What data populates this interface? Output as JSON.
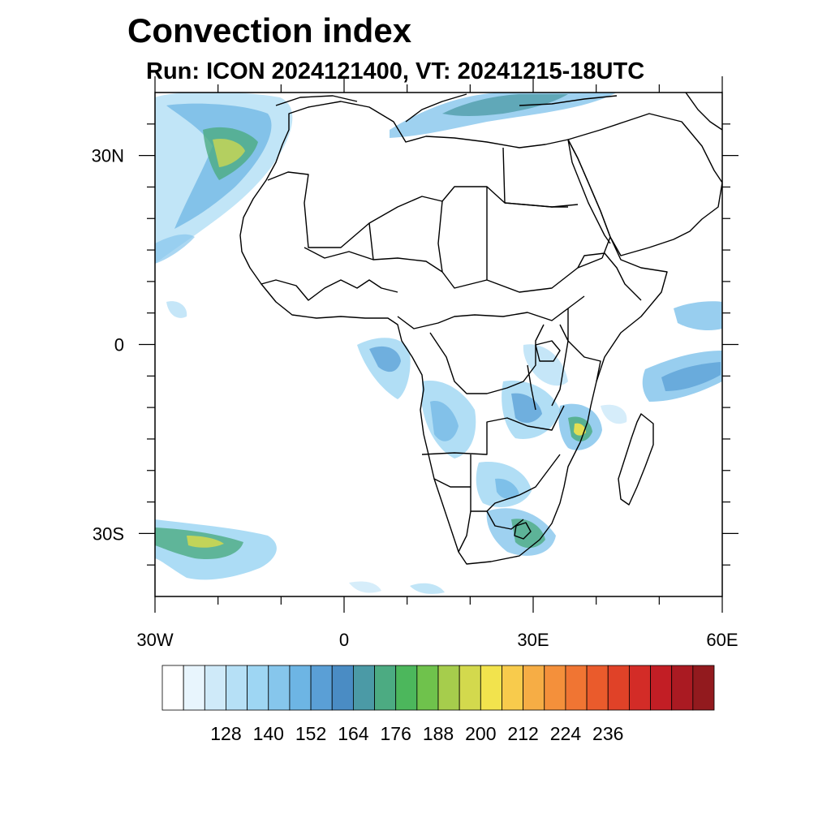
{
  "title": "Convection index",
  "subtitle": "Run: ICON 2024121400,  VT: 20241215-18UTC",
  "map": {
    "type": "heatmap",
    "extent": {
      "lon": [
        -30,
        60
      ],
      "lat": [
        -40,
        40
      ]
    },
    "x_ticks": [
      {
        "value": -30,
        "label": "30W"
      },
      {
        "value": 0,
        "label": "0"
      },
      {
        "value": 30,
        "label": "30E"
      },
      {
        "value": 60,
        "label": "60E"
      }
    ],
    "y_ticks": [
      {
        "value": 30,
        "label": "30N"
      },
      {
        "value": 0,
        "label": "0"
      },
      {
        "value": -30,
        "label": "30S"
      }
    ],
    "minor_lon": [
      -20,
      -10,
      10,
      20,
      40,
      50
    ],
    "minor_lat": [
      20,
      10,
      -10,
      -20,
      35,
      25,
      15,
      5,
      -5,
      -15,
      -25,
      -35
    ]
  },
  "colorbar": {
    "colors": [
      "#ffffff",
      "#e8f5fd",
      "#cfeaf9",
      "#b6e0f6",
      "#9ed6f3",
      "#86c6ec",
      "#6db5e4",
      "#5a9fd6",
      "#4a8cc4",
      "#4b9aa6",
      "#4cab82",
      "#4cb75c",
      "#6fc24c",
      "#a6cd4c",
      "#d3d94d",
      "#f2e34d",
      "#f8cb4c",
      "#f6ad45",
      "#f4903b",
      "#f07533",
      "#ea5b2c",
      "#e04228",
      "#d32c27",
      "#c21e25",
      "#aa1a22",
      "#921a1e"
    ],
    "labels": [
      "128",
      "140",
      "152",
      "164",
      "176",
      "188",
      "200",
      "212",
      "224",
      "236"
    ]
  },
  "chart_data": {
    "type": "heatmap",
    "title": "Convection index",
    "subtitle": "Run: ICON 2024121400,  VT: 20241215-18UTC",
    "x_axis": {
      "range": [
        -30,
        60
      ],
      "tick_labels": [
        "30W",
        "0",
        "30E",
        "60E"
      ]
    },
    "y_axis": {
      "range": [
        -40,
        40
      ],
      "tick_labels": [
        "30N",
        "0",
        "30S"
      ]
    },
    "colorbar_labels": [
      "128",
      "140",
      "152",
      "164",
      "176",
      "188",
      "200",
      "212",
      "224",
      "236"
    ],
    "colorbar_label_values": [
      128,
      140,
      152,
      164,
      176,
      188,
      200,
      212,
      224,
      236
    ]
  }
}
